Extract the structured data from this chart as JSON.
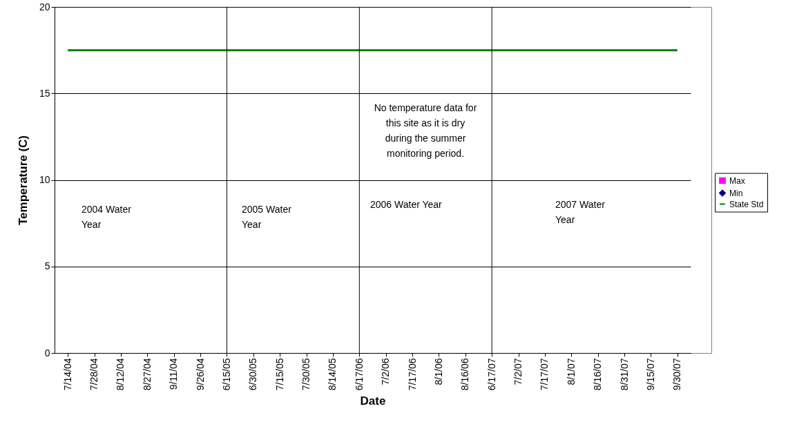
{
  "chart_data": {
    "type": "line",
    "xlabel": "Date",
    "ylabel": "Temperature (C)",
    "categories": [
      "7/14/04",
      "7/28/04",
      "8/12/04",
      "8/27/04",
      "9/11/04",
      "9/26/04",
      "6/15/05",
      "6/30/05",
      "7/15/05",
      "7/30/05",
      "8/14/05",
      "6/17/06",
      "7/2/06",
      "7/17/06",
      "8/1/06",
      "8/16/06",
      "6/17/07",
      "7/2/07",
      "7/17/07",
      "8/1/07",
      "8/16/07",
      "8/31/07",
      "9/15/07",
      "9/30/07"
    ],
    "series": [
      {
        "name": "Max",
        "color": "#ff00ff",
        "marker": "square",
        "values": [
          null,
          null,
          null,
          null,
          null,
          null,
          null,
          null,
          null,
          null,
          null,
          null,
          null,
          null,
          null,
          null,
          null,
          null,
          null,
          null,
          null,
          null,
          null,
          null
        ]
      },
      {
        "name": "Min",
        "color": "#000080",
        "marker": "diamond",
        "values": [
          null,
          null,
          null,
          null,
          null,
          null,
          null,
          null,
          null,
          null,
          null,
          null,
          null,
          null,
          null,
          null,
          null,
          null,
          null,
          null,
          null,
          null,
          null,
          null
        ]
      },
      {
        "name": "State Std",
        "color": "#008000",
        "marker": "none",
        "values": [
          17.5,
          17.5,
          17.5,
          17.5,
          17.5,
          17.5,
          17.5,
          17.5,
          17.5,
          17.5,
          17.5,
          17.5,
          17.5,
          17.5,
          17.5,
          17.5,
          17.5,
          17.5,
          17.5,
          17.5,
          17.5,
          17.5,
          17.5,
          17.5
        ]
      }
    ],
    "ylim": [
      0,
      20
    ],
    "yticks": [
      0,
      5,
      10,
      15,
      20
    ],
    "grid": "y",
    "legend": "right",
    "ref_lines": [
      {
        "axis": "x",
        "value": "6/15/05",
        "color": "#000000"
      },
      {
        "axis": "x",
        "value": "6/17/06",
        "color": "#000000"
      },
      {
        "axis": "x",
        "value": "6/17/07",
        "color": "#000000"
      }
    ],
    "annotations": [
      "2004 Water Year",
      "2005 Water Year",
      "2006 Water Year",
      "2007 Water Year",
      "No temperature data for this site as it is dry during the summer monitoring period."
    ]
  }
}
